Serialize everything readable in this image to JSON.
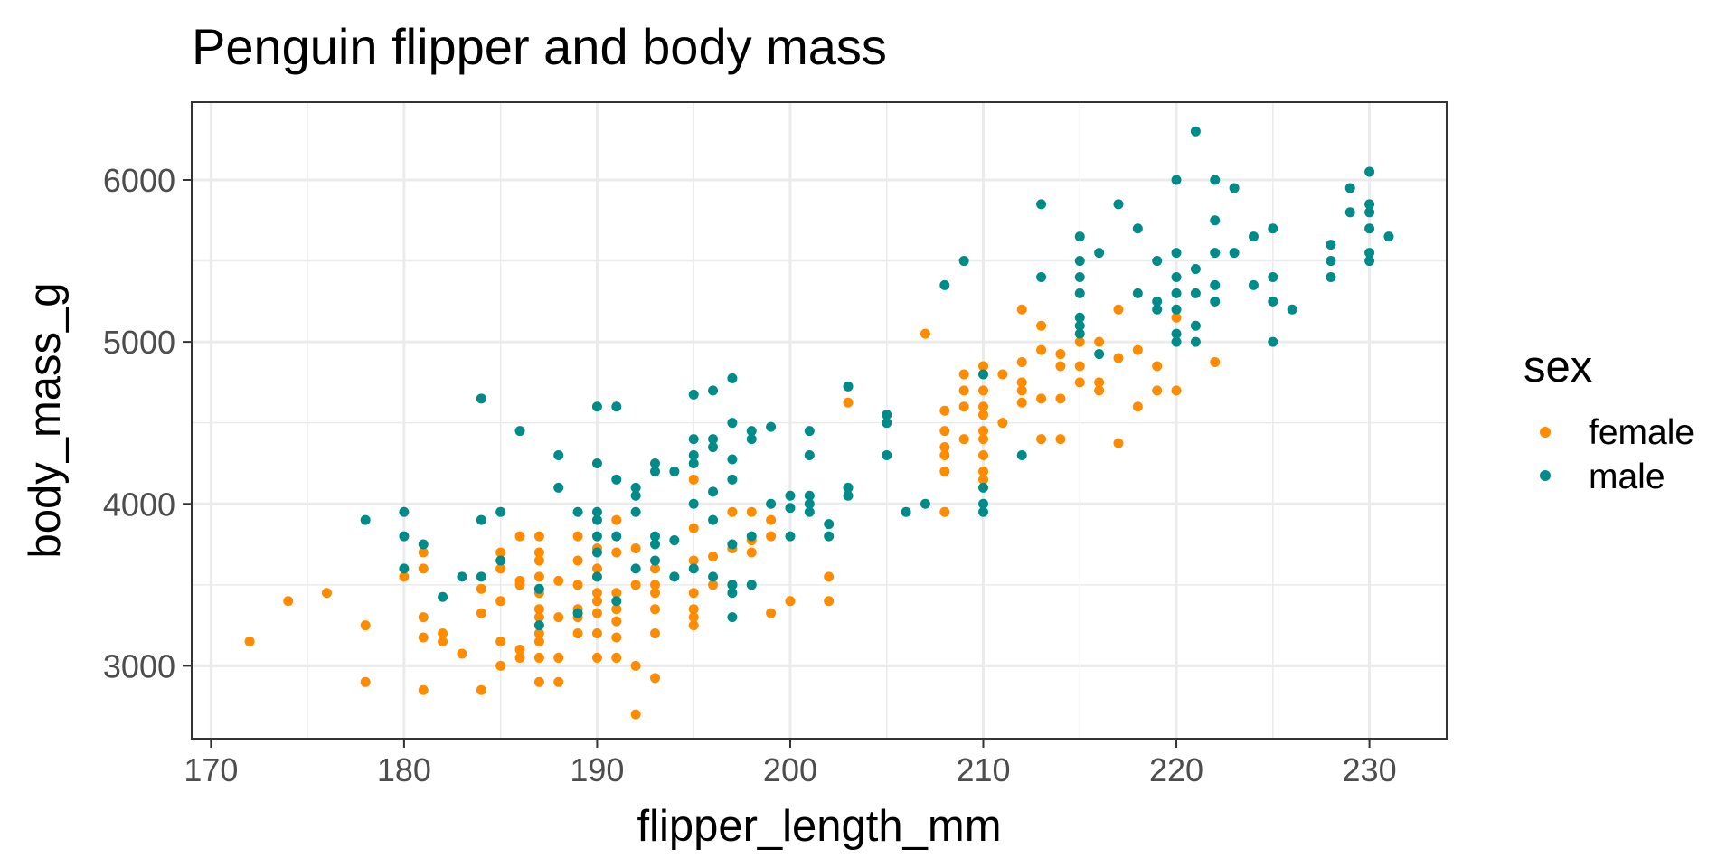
{
  "chart_data": {
    "type": "scatter",
    "title": "Penguin flipper and body mass",
    "xlabel": "flipper_length_mm",
    "ylabel": "body_mass_g",
    "xlim": [
      169,
      234
    ],
    "ylim": [
      2550,
      6480
    ],
    "x_ticks": [
      170,
      180,
      190,
      200,
      210,
      220,
      230
    ],
    "y_ticks": [
      3000,
      4000,
      5000,
      6000
    ],
    "x_tick_labels": [
      "170",
      "180",
      "190",
      "200",
      "210",
      "220",
      "230"
    ],
    "y_tick_labels": [
      "3000",
      "4000",
      "5000",
      "6000"
    ],
    "grid": true,
    "legend": {
      "title": "sex",
      "placement": "right"
    },
    "series": [
      {
        "name": "female",
        "color": "#ff8c00",
        "points": [
          [
            172,
            3150
          ],
          [
            174,
            3400
          ],
          [
            176,
            3450
          ],
          [
            178,
            3250
          ],
          [
            178,
            2900
          ],
          [
            180,
            3550
          ],
          [
            181,
            3700
          ],
          [
            181,
            3600
          ],
          [
            181,
            3300
          ],
          [
            181,
            3175
          ],
          [
            181,
            2850
          ],
          [
            182,
            3200
          ],
          [
            182,
            3150
          ],
          [
            183,
            3075
          ],
          [
            184,
            3475
          ],
          [
            184,
            3325
          ],
          [
            184,
            2850
          ],
          [
            185,
            3700
          ],
          [
            185,
            3600
          ],
          [
            185,
            3400
          ],
          [
            185,
            3150
          ],
          [
            185,
            3000
          ],
          [
            186,
            3800
          ],
          [
            186,
            3525
          ],
          [
            186,
            3500
          ],
          [
            186,
            3100
          ],
          [
            186,
            3050
          ],
          [
            187,
            3800
          ],
          [
            187,
            3700
          ],
          [
            187,
            3650
          ],
          [
            187,
            3550
          ],
          [
            187,
            3450
          ],
          [
            187,
            3350
          ],
          [
            187,
            3300
          ],
          [
            187,
            3200
          ],
          [
            187,
            3150
          ],
          [
            187,
            3050
          ],
          [
            187,
            2900
          ],
          [
            188,
            3525
          ],
          [
            188,
            3300
          ],
          [
            188,
            3050
          ],
          [
            188,
            2900
          ],
          [
            189,
            3800
          ],
          [
            189,
            3650
          ],
          [
            189,
            3500
          ],
          [
            189,
            3350
          ],
          [
            189,
            3300
          ],
          [
            189,
            3200
          ],
          [
            190,
            3725
          ],
          [
            190,
            3600
          ],
          [
            190,
            3450
          ],
          [
            190,
            3400
          ],
          [
            190,
            3325
          ],
          [
            190,
            3200
          ],
          [
            190,
            3050
          ],
          [
            191,
            3900
          ],
          [
            191,
            3700
          ],
          [
            191,
            3450
          ],
          [
            191,
            3350
          ],
          [
            191,
            3275
          ],
          [
            191,
            3175
          ],
          [
            191,
            3050
          ],
          [
            192,
            3725
          ],
          [
            192,
            3500
          ],
          [
            192,
            3000
          ],
          [
            192,
            2700
          ],
          [
            193,
            3600
          ],
          [
            193,
            3500
          ],
          [
            193,
            3450
          ],
          [
            193,
            3350
          ],
          [
            193,
            3200
          ],
          [
            193,
            2925
          ],
          [
            194,
            3550
          ],
          [
            195,
            4150
          ],
          [
            195,
            3850
          ],
          [
            195,
            3650
          ],
          [
            195,
            3450
          ],
          [
            195,
            3350
          ],
          [
            195,
            3300
          ],
          [
            195,
            3250
          ],
          [
            196,
            3675
          ],
          [
            196,
            3500
          ],
          [
            197,
            3950
          ],
          [
            197,
            3725
          ],
          [
            197,
            3500
          ],
          [
            198,
            3950
          ],
          [
            198,
            3775
          ],
          [
            198,
            3700
          ],
          [
            199,
            3900
          ],
          [
            199,
            3800
          ],
          [
            199,
            3325
          ],
          [
            200,
            3400
          ],
          [
            202,
            3550
          ],
          [
            202,
            3400
          ],
          [
            203,
            4625
          ],
          [
            207,
            5050
          ],
          [
            208,
            4575
          ],
          [
            208,
            4450
          ],
          [
            208,
            4350
          ],
          [
            208,
            4300
          ],
          [
            208,
            4200
          ],
          [
            208,
            3950
          ],
          [
            209,
            4800
          ],
          [
            209,
            4700
          ],
          [
            209,
            4600
          ],
          [
            209,
            4400
          ],
          [
            210,
            4850
          ],
          [
            210,
            4800
          ],
          [
            210,
            4700
          ],
          [
            210,
            4600
          ],
          [
            210,
            4550
          ],
          [
            210,
            4450
          ],
          [
            210,
            4400
          ],
          [
            210,
            4300
          ],
          [
            210,
            4200
          ],
          [
            210,
            4150
          ],
          [
            211,
            4800
          ],
          [
            211,
            4500
          ],
          [
            212,
            5200
          ],
          [
            212,
            4875
          ],
          [
            212,
            4750
          ],
          [
            212,
            4700
          ],
          [
            212,
            4625
          ],
          [
            213,
            5100
          ],
          [
            213,
            4950
          ],
          [
            213,
            4650
          ],
          [
            213,
            4400
          ],
          [
            214,
            4925
          ],
          [
            214,
            4850
          ],
          [
            214,
            4650
          ],
          [
            214,
            4400
          ],
          [
            215,
            5000
          ],
          [
            215,
            4850
          ],
          [
            215,
            4750
          ],
          [
            216,
            5000
          ],
          [
            216,
            4750
          ],
          [
            216,
            4700
          ],
          [
            217,
            5200
          ],
          [
            217,
            4900
          ],
          [
            217,
            4375
          ],
          [
            218,
            4950
          ],
          [
            218,
            4600
          ],
          [
            219,
            4850
          ],
          [
            219,
            4700
          ],
          [
            220,
            5150
          ],
          [
            220,
            4700
          ],
          [
            222,
            4875
          ]
        ]
      },
      {
        "name": "male",
        "color": "#008b8b",
        "points": [
          [
            178,
            3900
          ],
          [
            180,
            3950
          ],
          [
            180,
            3800
          ],
          [
            180,
            3600
          ],
          [
            181,
            3750
          ],
          [
            182,
            3425
          ],
          [
            183,
            3550
          ],
          [
            184,
            4650
          ],
          [
            184,
            3900
          ],
          [
            184,
            3550
          ],
          [
            185,
            3950
          ],
          [
            185,
            3650
          ],
          [
            186,
            4450
          ],
          [
            187,
            3475
          ],
          [
            187,
            3250
          ],
          [
            188,
            4300
          ],
          [
            188,
            4100
          ],
          [
            189,
            3950
          ],
          [
            189,
            3325
          ],
          [
            190,
            4600
          ],
          [
            190,
            4250
          ],
          [
            190,
            3950
          ],
          [
            190,
            3900
          ],
          [
            190,
            3800
          ],
          [
            190,
            3700
          ],
          [
            190,
            3550
          ],
          [
            191,
            4600
          ],
          [
            191,
            4150
          ],
          [
            191,
            3800
          ],
          [
            191,
            3400
          ],
          [
            192,
            4100
          ],
          [
            192,
            4050
          ],
          [
            192,
            3950
          ],
          [
            192,
            3600
          ],
          [
            193,
            4250
          ],
          [
            193,
            4200
          ],
          [
            193,
            3800
          ],
          [
            193,
            3750
          ],
          [
            193,
            3650
          ],
          [
            194,
            4200
          ],
          [
            194,
            3775
          ],
          [
            194,
            3550
          ],
          [
            195,
            4675
          ],
          [
            195,
            4400
          ],
          [
            195,
            4300
          ],
          [
            195,
            4250
          ],
          [
            195,
            4000
          ],
          [
            195,
            3600
          ],
          [
            196,
            4700
          ],
          [
            196,
            4400
          ],
          [
            196,
            4350
          ],
          [
            196,
            4075
          ],
          [
            196,
            3900
          ],
          [
            196,
            3550
          ],
          [
            197,
            4775
          ],
          [
            197,
            4500
          ],
          [
            197,
            4275
          ],
          [
            197,
            4150
          ],
          [
            197,
            3750
          ],
          [
            197,
            3500
          ],
          [
            197,
            3450
          ],
          [
            197,
            3300
          ],
          [
            198,
            4450
          ],
          [
            198,
            4400
          ],
          [
            198,
            3800
          ],
          [
            198,
            3500
          ],
          [
            199,
            4475
          ],
          [
            199,
            4000
          ],
          [
            200,
            4050
          ],
          [
            200,
            3975
          ],
          [
            200,
            3800
          ],
          [
            201,
            4450
          ],
          [
            201,
            4300
          ],
          [
            201,
            4050
          ],
          [
            201,
            4000
          ],
          [
            201,
            3950
          ],
          [
            202,
            3875
          ],
          [
            202,
            3800
          ],
          [
            203,
            4725
          ],
          [
            203,
            4100
          ],
          [
            203,
            4050
          ],
          [
            205,
            4550
          ],
          [
            205,
            4500
          ],
          [
            205,
            4300
          ],
          [
            206,
            3950
          ],
          [
            207,
            4000
          ],
          [
            208,
            5350
          ],
          [
            209,
            5500
          ],
          [
            210,
            4800
          ],
          [
            210,
            4100
          ],
          [
            210,
            4000
          ],
          [
            210,
            3950
          ],
          [
            212,
            4300
          ],
          [
            213,
            5850
          ],
          [
            213,
            5400
          ],
          [
            215,
            5650
          ],
          [
            215,
            5500
          ],
          [
            215,
            5400
          ],
          [
            215,
            5300
          ],
          [
            215,
            5150
          ],
          [
            215,
            5100
          ],
          [
            215,
            5050
          ],
          [
            216,
            5550
          ],
          [
            216,
            4925
          ],
          [
            217,
            5850
          ],
          [
            218,
            5700
          ],
          [
            218,
            5300
          ],
          [
            219,
            5500
          ],
          [
            219,
            5250
          ],
          [
            219,
            5200
          ],
          [
            220,
            6000
          ],
          [
            220,
            5550
          ],
          [
            220,
            5400
          ],
          [
            220,
            5300
          ],
          [
            220,
            5200
          ],
          [
            220,
            5050
          ],
          [
            220,
            5000
          ],
          [
            221,
            6300
          ],
          [
            221,
            5450
          ],
          [
            221,
            5300
          ],
          [
            221,
            5100
          ],
          [
            221,
            5000
          ],
          [
            222,
            6000
          ],
          [
            222,
            5750
          ],
          [
            222,
            5550
          ],
          [
            222,
            5350
          ],
          [
            222,
            5250
          ],
          [
            223,
            5950
          ],
          [
            223,
            5550
          ],
          [
            224,
            5650
          ],
          [
            224,
            5350
          ],
          [
            225,
            5700
          ],
          [
            225,
            5400
          ],
          [
            225,
            5250
          ],
          [
            225,
            5000
          ],
          [
            226,
            5200
          ],
          [
            228,
            5600
          ],
          [
            228,
            5500
          ],
          [
            228,
            5400
          ],
          [
            229,
            5950
          ],
          [
            229,
            5800
          ],
          [
            230,
            6050
          ],
          [
            230,
            5850
          ],
          [
            230,
            5800
          ],
          [
            230,
            5700
          ],
          [
            230,
            5550
          ],
          [
            230,
            5500
          ],
          [
            231,
            5650
          ]
        ]
      }
    ]
  }
}
